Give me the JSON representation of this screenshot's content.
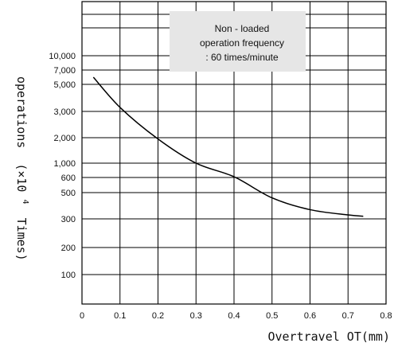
{
  "chart_data": {
    "type": "line",
    "xlabel": "Overtravel OT(mm)",
    "ylabel": {
      "prefix": "operations",
      "multiplier": "(×10",
      "exponent": "4",
      "suffix": "Times)"
    },
    "xlim": [
      0,
      0.8
    ],
    "x_ticks": [
      "0",
      "0.1",
      "0.2",
      "0.3",
      "0.4",
      "0.5",
      "0.6",
      "0.7",
      "0.8"
    ],
    "y_ticks": [
      {
        "label": "10,000",
        "value": 10000
      },
      {
        "label": "7,000",
        "value": 7000
      },
      {
        "label": "5,000",
        "value": 5000
      },
      {
        "label": "3,000",
        "value": 3000
      },
      {
        "label": "2,000",
        "value": 2000
      },
      {
        "label": "1,000",
        "value": 1000
      },
      {
        "label": "600",
        "value": 600
      },
      {
        "label": "500",
        "value": 500
      },
      {
        "label": "300",
        "value": 300
      },
      {
        "label": "200",
        "value": 200
      },
      {
        "label": "100",
        "value": 100
      }
    ],
    "annotation": [
      "Non - loaded",
      "operation frequency",
      ": 60 times/minute"
    ],
    "grid": true,
    "series": [
      {
        "x": [
          0.03,
          0.1,
          0.2,
          0.3,
          0.4,
          0.5,
          0.6,
          0.7,
          0.74
        ],
        "y": [
          6000,
          3300,
          1950,
          1000,
          620,
          460,
          370,
          330,
          320
        ]
      }
    ]
  }
}
